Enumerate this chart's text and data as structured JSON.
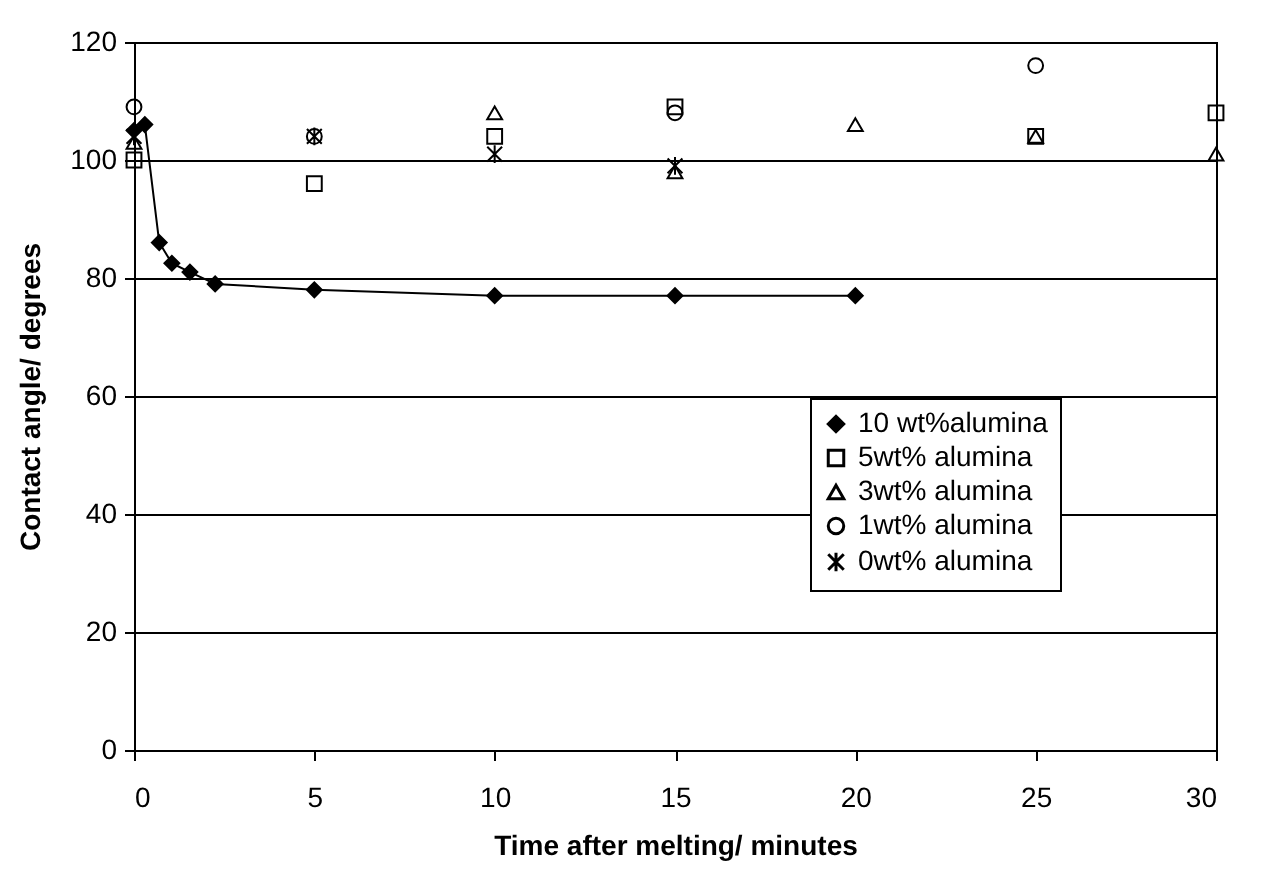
{
  "chart_data": {
    "type": "scatter",
    "xlabel": "Time after melting/ minutes",
    "ylabel": "Contact angle/ degrees",
    "xlim": [
      0,
      30
    ],
    "xticks": [
      0,
      5,
      10,
      15,
      20,
      25,
      30
    ],
    "ylim": [
      0,
      120
    ],
    "yticks": [
      0,
      20,
      40,
      60,
      80,
      100,
      120
    ],
    "grid": "y",
    "legend": "bottom right",
    "series": [
      {
        "name": "10 wt%alumina",
        "type": "line",
        "marker": "diamond",
        "color": "#000000",
        "x": [
          0,
          0.3,
          0.7,
          1.05,
          1.55,
          2.25,
          5,
          10,
          15,
          20
        ],
        "values": [
          105,
          106,
          86,
          82.5,
          81,
          79,
          78,
          77,
          77,
          77
        ]
      },
      {
        "name": "5wt% alumina",
        "type": "scatter",
        "marker": "square",
        "color": "#000000",
        "x": [
          0,
          5,
          10,
          15,
          25,
          30
        ],
        "values": [
          100,
          96,
          104,
          109,
          104,
          108
        ]
      },
      {
        "name": "3wt% alumina",
        "type": "scatter",
        "marker": "triangle",
        "color": "#000000",
        "x": [
          0,
          10,
          15,
          20,
          25,
          30
        ],
        "values": [
          103,
          108,
          98,
          106,
          104,
          101
        ]
      },
      {
        "name": "1wt% alumina",
        "type": "scatter",
        "marker": "circle",
        "color": "#000000",
        "x": [
          0,
          5,
          15,
          25
        ],
        "values": [
          109,
          104,
          108,
          116
        ]
      },
      {
        "name": "0wt% alumina",
        "type": "scatter",
        "marker": "cross",
        "color": "#000000",
        "x": [
          0,
          5,
          10,
          15
        ],
        "values": [
          104,
          104,
          101,
          99
        ]
      }
    ]
  }
}
